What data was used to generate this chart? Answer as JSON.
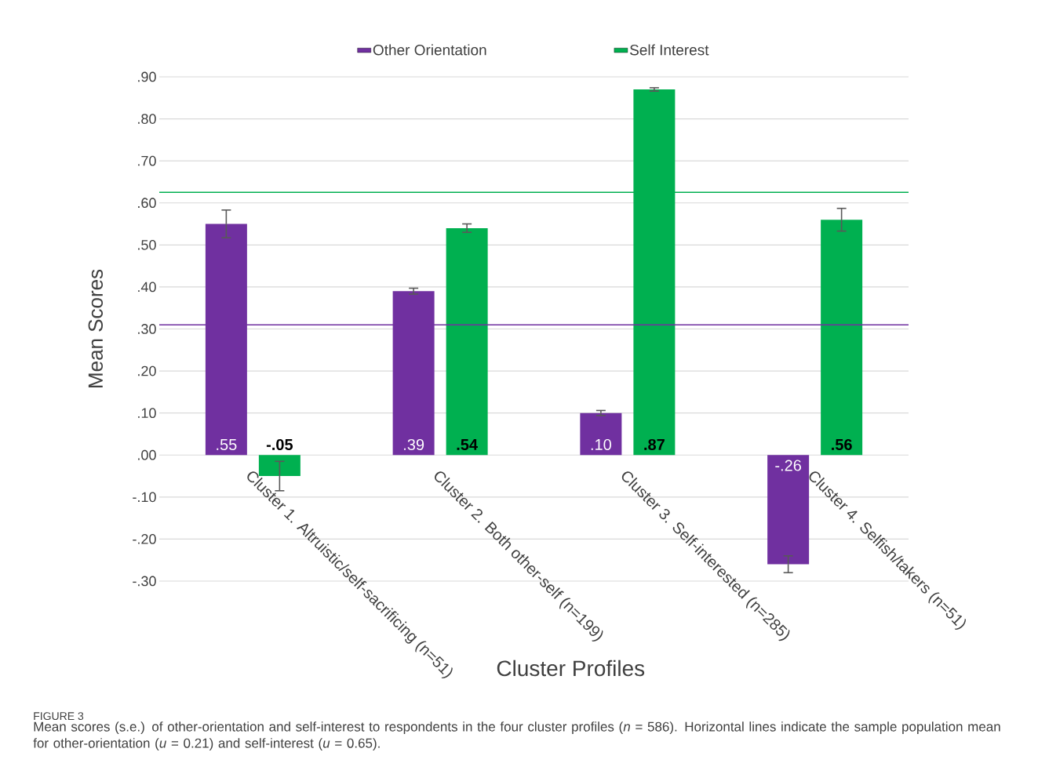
{
  "chart_data": {
    "type": "bar",
    "xlabel": "Cluster Profiles",
    "ylabel": "Mean Scores",
    "categories": [
      "Cluster 1. Altruistic/self-sacrificing (n=51)",
      "Cluster 2. Both other-self (n=199)",
      "Cluster 3. Self-interested (n=285)",
      "Cluster 4. Selfish/takers (n=51)"
    ],
    "series": [
      {
        "name": "Other Orientation",
        "color": "#7030a0",
        "values": [
          0.55,
          0.39,
          0.1,
          -0.26
        ],
        "errors": [
          0.033,
          0.007,
          0.006,
          0.02
        ],
        "value_labels": [
          ".55",
          ".39",
          ".10",
          "-.26"
        ]
      },
      {
        "name": "Self Interest",
        "color": "#00b050",
        "values": [
          -0.05,
          0.54,
          0.87,
          0.56
        ],
        "errors": [
          0.035,
          0.01,
          0.004,
          0.027
        ],
        "value_labels": [
          "-.05",
          ".54",
          ".87",
          ".56"
        ]
      }
    ],
    "ylim": [
      -0.3,
      0.9
    ],
    "yticks": [
      {
        "value": -0.3,
        "label": "-.30"
      },
      {
        "value": -0.2,
        "label": "-.20"
      },
      {
        "value": -0.1,
        "label": "-.10"
      },
      {
        "value": 0,
        "label": ".00"
      },
      {
        "value": 0.1,
        "label": ".10"
      },
      {
        "value": 0.2,
        "label": ".20"
      },
      {
        "value": 0.3,
        "label": ".30"
      },
      {
        "value": 0.4,
        "label": ".40"
      },
      {
        "value": 0.5,
        "label": ".50"
      },
      {
        "value": 0.6,
        "label": ".60"
      },
      {
        "value": 0.7,
        "label": ".70"
      },
      {
        "value": 0.8,
        "label": ".80"
      },
      {
        "value": 0.9,
        "label": ".90"
      }
    ],
    "ref_lines": [
      {
        "axis": "y",
        "value": 0.31,
        "color": "#7030a0"
      },
      {
        "axis": "y",
        "value": 0.625,
        "color": "#00b050"
      }
    ],
    "grid": "y",
    "legend": "top",
    "annotations": [
      "FIGURE 3",
      "Mean scores (s.e.) of other-orientation and self-interest to respondents in the four cluster profiles (*n* = 586). Horizontal lines indicate the sample population mean for other-orientation (*u* = 0.21) and self-interest (*u* = 0.65)."
    ]
  }
}
